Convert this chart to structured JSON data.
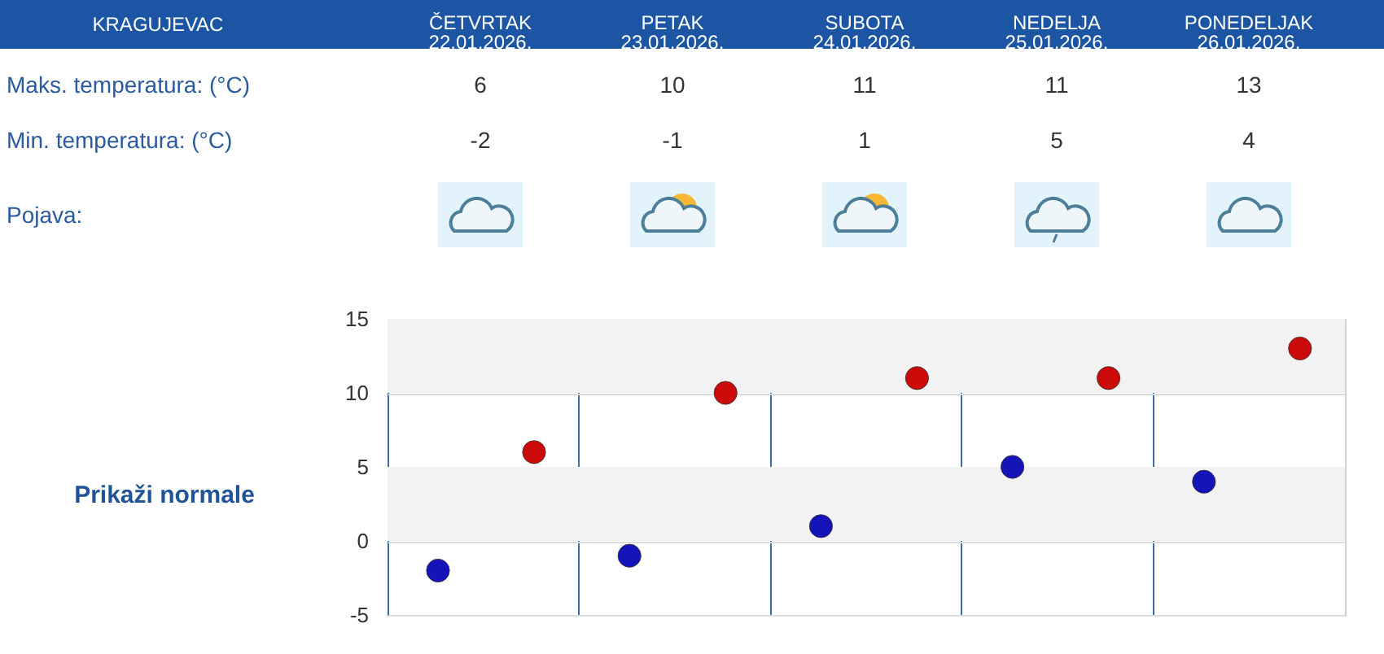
{
  "chart_data": [
    {
      "type": "other",
      "title": "KRAGUJEVAC",
      "categories": [
        "ČETVRTAK 22.01.2026.",
        "PETAK 23.01.2026.",
        "SUBOTA 24.01.2026.",
        "NEDELJA 25.01.2026.",
        "PONEDELJAK 26.01.2026."
      ],
      "series": [
        {
          "name": "Maks. temperatura: (°C)",
          "values": [
            6,
            10,
            11,
            11,
            13
          ]
        },
        {
          "name": "Min. temperatura: (°C)",
          "values": [
            -2,
            -1,
            1,
            5,
            4
          ]
        }
      ],
      "data_labels": true,
      "annotations": [
        "Pojava:"
      ]
    },
    {
      "type": "scatter",
      "categories": [
        null,
        null,
        null,
        null,
        null
      ],
      "series": [
        {
          "color": "#1414b8",
          "values": [
            -2,
            -1,
            1,
            5,
            4
          ]
        },
        {
          "color": "#cc0a0a",
          "values": [
            6,
            10,
            11,
            11,
            13
          ]
        }
      ],
      "ylim": [
        -5,
        15
      ],
      "yticks": [
        -5,
        0,
        5,
        10,
        15
      ],
      "grid": true,
      "marker": "circle",
      "tick_labels": "y",
      "bands": [
        {
          "axis": "y",
          "from": 10,
          "to": 15,
          "color": "#f2f2f2"
        },
        {
          "axis": "y",
          "from": 0,
          "to": 5,
          "color": "#f2f2f2"
        }
      ],
      "annotations": [
        "Prikaži normale"
      ]
    }
  ]
}
